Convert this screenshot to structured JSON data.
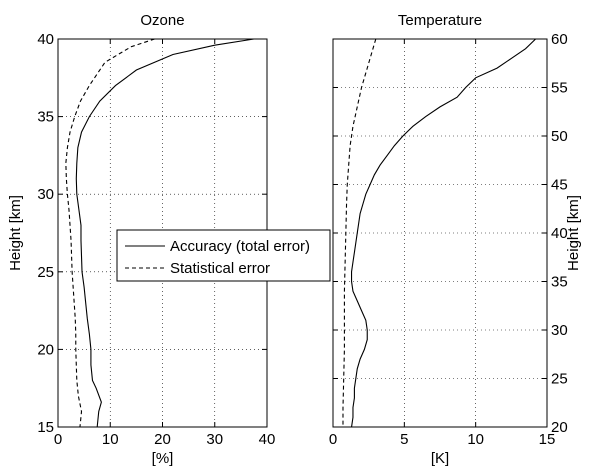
{
  "chart_data": [
    {
      "type": "line",
      "title": "Ozone",
      "xlabel": "[%]",
      "ylabel": "Height [km]",
      "xlim": [
        0,
        40
      ],
      "ylim": [
        15,
        40
      ],
      "xticks": [
        0,
        10,
        20,
        30,
        40
      ],
      "yticks": [
        15,
        20,
        25,
        30,
        35,
        40
      ],
      "grid": true,
      "series": [
        {
          "name": "Accuracy (total error)",
          "style": "solid",
          "points": [
            [
              37.5,
              40
            ],
            [
              30,
              39.6
            ],
            [
              22,
              39
            ],
            [
              15,
              38
            ],
            [
              11,
              37
            ],
            [
              8,
              36
            ],
            [
              6,
              35
            ],
            [
              4.5,
              34
            ],
            [
              3.8,
              33
            ],
            [
              3.6,
              32
            ],
            [
              3.5,
              31
            ],
            [
              3.6,
              30
            ],
            [
              4,
              29
            ],
            [
              4.4,
              28
            ],
            [
              4.4,
              27
            ],
            [
              4.5,
              26
            ],
            [
              4.6,
              25
            ],
            [
              5,
              24
            ],
            [
              5.3,
              23
            ],
            [
              5.6,
              22
            ],
            [
              6,
              21
            ],
            [
              6.3,
              20
            ],
            [
              6.3,
              19
            ],
            [
              6.6,
              18
            ],
            [
              7.3,
              17.5
            ],
            [
              8.3,
              16.6
            ],
            [
              7.8,
              16
            ],
            [
              7.5,
              15
            ]
          ]
        },
        {
          "name": "Statistical error",
          "style": "dashed",
          "points": [
            [
              18.5,
              40
            ],
            [
              14,
              39.5
            ],
            [
              9,
              38.5
            ],
            [
              6,
              37
            ],
            [
              4.3,
              36
            ],
            [
              3.2,
              35
            ],
            [
              2.3,
              34
            ],
            [
              1.8,
              33
            ],
            [
              1.5,
              32
            ],
            [
              1.6,
              31
            ],
            [
              1.8,
              30
            ],
            [
              2.1,
              29
            ],
            [
              2.3,
              28
            ],
            [
              2.5,
              27
            ],
            [
              2.6,
              26
            ],
            [
              2.7,
              25
            ],
            [
              2.9,
              24
            ],
            [
              3.1,
              23
            ],
            [
              3.3,
              22
            ],
            [
              3.4,
              21
            ],
            [
              3.4,
              20
            ],
            [
              3.5,
              19
            ],
            [
              3.6,
              18
            ],
            [
              3.9,
              17
            ],
            [
              4.5,
              16
            ],
            [
              4.2,
              15
            ]
          ]
        }
      ],
      "legend": {
        "location": "right",
        "entries": [
          "Accuracy (total error)",
          "Statistical error"
        ]
      }
    },
    {
      "type": "line",
      "title": "Temperature",
      "xlabel": "[K]",
      "ylabel": "Height [km]",
      "ylabel_position": "right",
      "xlim": [
        0,
        15
      ],
      "ylim": [
        20,
        60
      ],
      "xticks": [
        0,
        5,
        10,
        15
      ],
      "yticks": [
        20,
        25,
        30,
        35,
        40,
        45,
        50,
        55,
        60
      ],
      "grid": true,
      "series": [
        {
          "name": "Accuracy (total error)",
          "style": "solid",
          "points": [
            [
              14.2,
              60
            ],
            [
              13.5,
              59
            ],
            [
              12.5,
              58
            ],
            [
              11.5,
              57
            ],
            [
              10,
              56
            ],
            [
              9.3,
              55
            ],
            [
              8.7,
              54
            ],
            [
              7.5,
              53
            ],
            [
              6.5,
              52
            ],
            [
              5.6,
              51
            ],
            [
              4.9,
              50
            ],
            [
              4.3,
              49
            ],
            [
              3.8,
              48
            ],
            [
              3.3,
              47
            ],
            [
              2.9,
              46
            ],
            [
              2.6,
              45
            ],
            [
              2.3,
              44
            ],
            [
              2.1,
              43
            ],
            [
              1.9,
              42
            ],
            [
              1.8,
              41
            ],
            [
              1.7,
              40
            ],
            [
              1.6,
              39
            ],
            [
              1.5,
              38
            ],
            [
              1.4,
              37
            ],
            [
              1.3,
              36
            ],
            [
              1.3,
              35
            ],
            [
              1.4,
              34
            ],
            [
              1.7,
              33
            ],
            [
              2.0,
              32
            ],
            [
              2.3,
              31
            ],
            [
              2.4,
              30
            ],
            [
              2.4,
              29
            ],
            [
              2.2,
              28
            ],
            [
              1.9,
              27
            ],
            [
              1.7,
              26
            ],
            [
              1.6,
              25
            ],
            [
              1.5,
              24
            ],
            [
              1.5,
              23
            ],
            [
              1.4,
              22
            ],
            [
              1.4,
              21
            ],
            [
              1.3,
              20
            ]
          ]
        },
        {
          "name": "Statistical error",
          "style": "dashed",
          "points": [
            [
              3.0,
              60
            ],
            [
              2.8,
              59
            ],
            [
              2.6,
              58
            ],
            [
              2.4,
              57
            ],
            [
              2.2,
              56
            ],
            [
              2.0,
              55
            ],
            [
              1.85,
              54
            ],
            [
              1.7,
              53
            ],
            [
              1.55,
              52
            ],
            [
              1.4,
              51
            ],
            [
              1.3,
              50
            ],
            [
              1.2,
              49
            ],
            [
              1.1,
              47
            ],
            [
              1.0,
              45
            ],
            [
              0.95,
              43
            ],
            [
              0.9,
              40
            ],
            [
              0.85,
              37
            ],
            [
              0.8,
              34
            ],
            [
              0.8,
              31
            ],
            [
              0.8,
              28
            ],
            [
              0.75,
              25
            ],
            [
              0.7,
              22
            ],
            [
              0.7,
              20
            ]
          ]
        }
      ]
    }
  ]
}
